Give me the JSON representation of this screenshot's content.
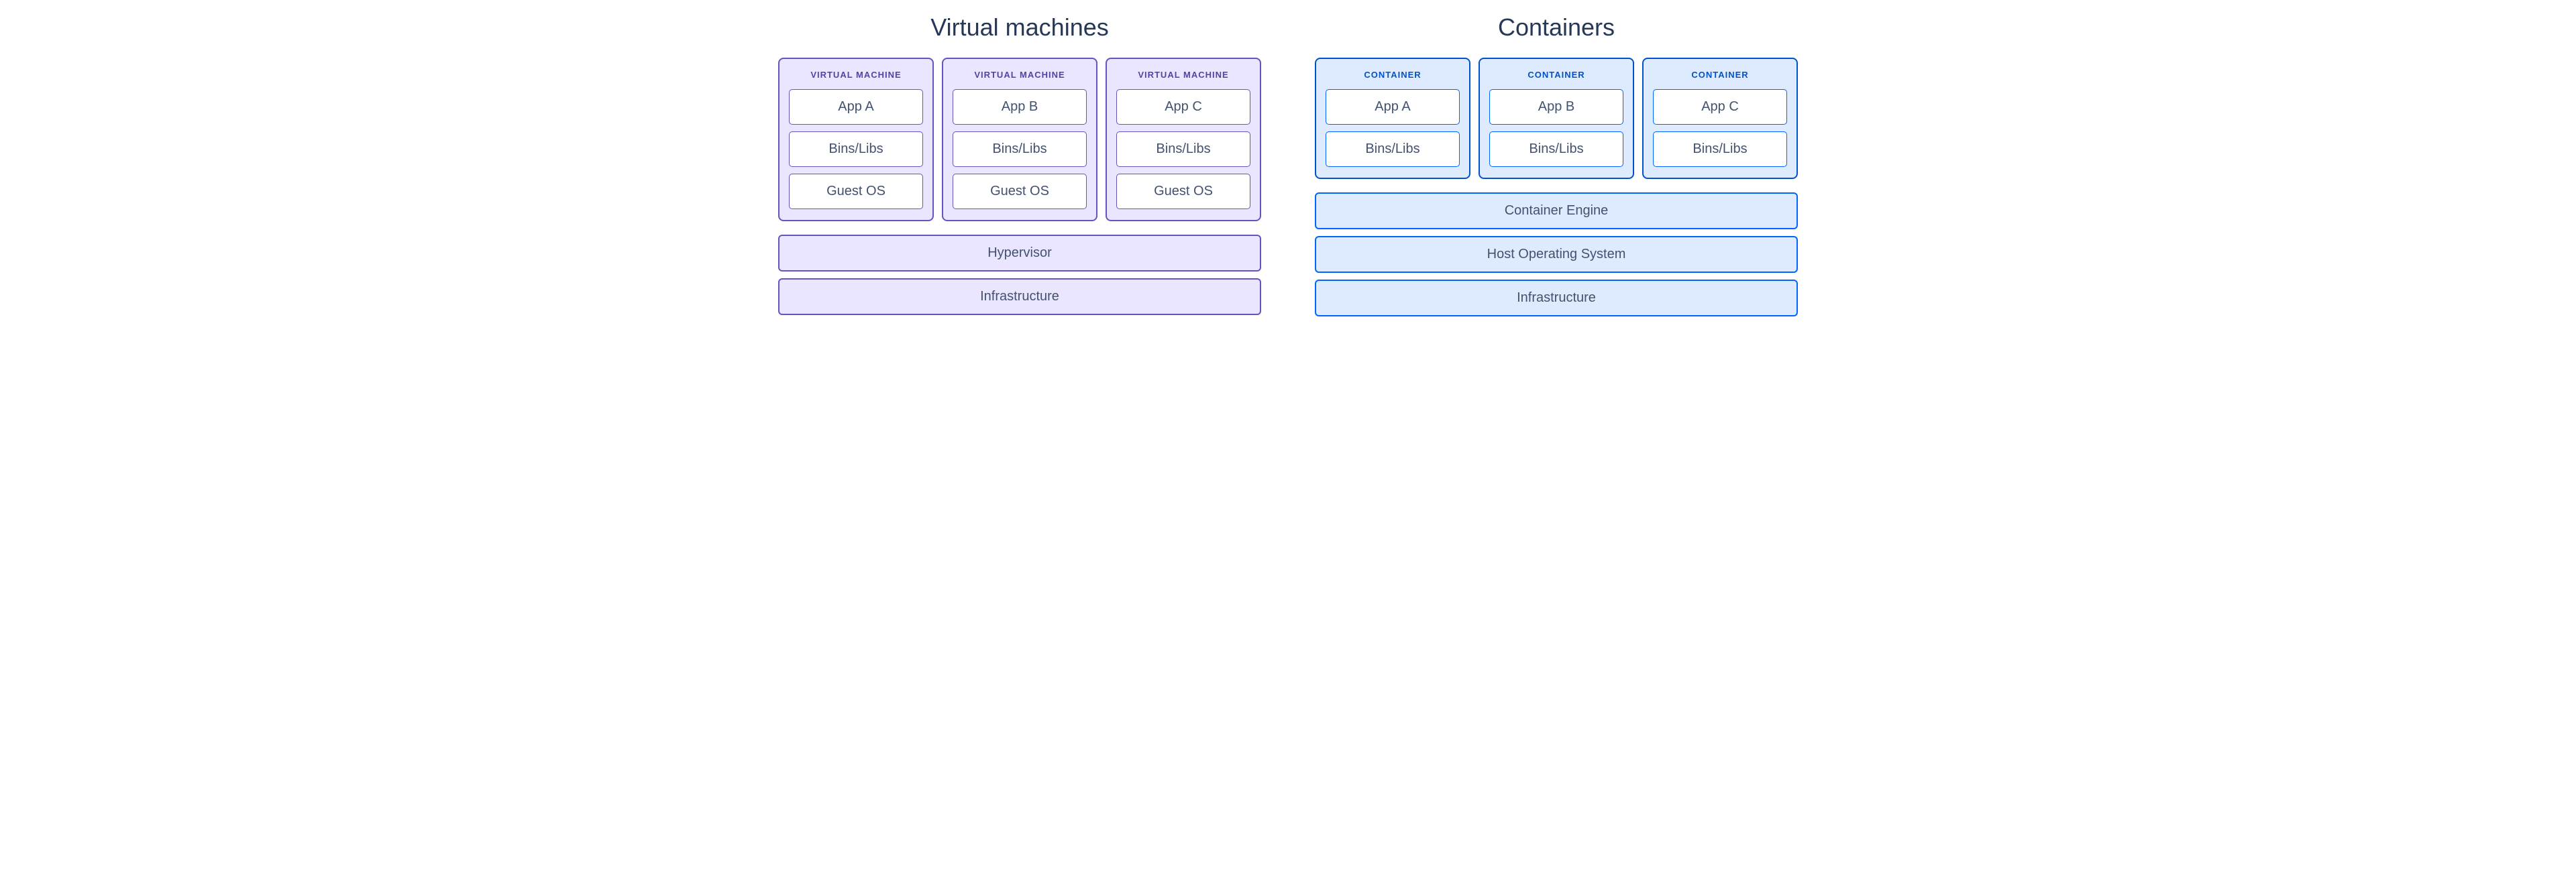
{
  "vm_side": {
    "title": "Virtual machines",
    "instance_label": "VIRTUAL MACHINE",
    "instances": [
      {
        "app": "App A",
        "bins": "Bins/Libs",
        "os": "Guest OS"
      },
      {
        "app": "App B",
        "bins": "Bins/Libs",
        "os": "Guest OS"
      },
      {
        "app": "App C",
        "bins": "Bins/Libs",
        "os": "Guest OS"
      }
    ],
    "foundation_layers": [
      "Hypervisor",
      "Infrastructure"
    ],
    "colors": {
      "card_bg": "#eae6ff",
      "border": "#6554c0",
      "label_text": "#5243aa"
    }
  },
  "container_side": {
    "title": "Containers",
    "instance_label": "CONTAINER",
    "instances": [
      {
        "app": "App A",
        "bins": "Bins/Libs"
      },
      {
        "app": "App B",
        "bins": "Bins/Libs"
      },
      {
        "app": "App C",
        "bins": "Bins/Libs"
      }
    ],
    "foundation_layers": [
      "Container Engine",
      "Host Operating System",
      "Infrastructure"
    ],
    "colors": {
      "card_bg": "#deebff",
      "border": "#0052cc",
      "label_text": "#0052cc"
    }
  },
  "shared": {
    "text_color": "#42526e",
    "inner_box_bg": "#ffffff",
    "title_color": "#253858"
  }
}
